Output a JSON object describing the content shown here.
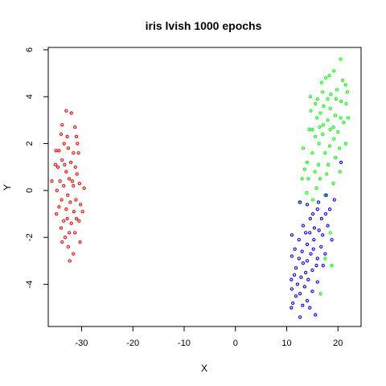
{
  "chart_data": {
    "type": "scatter",
    "title": "iris lvish 1000 epochs",
    "xlabel": "X",
    "ylabel": "Y",
    "xlim": [
      -36.5,
      24.5
    ],
    "ylim": [
      -5.8,
      6.1
    ],
    "xticks": [
      -30,
      -20,
      -10,
      0,
      10,
      20
    ],
    "yticks": [
      -4,
      -2,
      0,
      2,
      4,
      6
    ],
    "grid": false,
    "legend": "none",
    "marker": "open-circle",
    "series": [
      {
        "color": "#ff0000",
        "points": [
          [
            -33.0,
            3.4
          ],
          [
            -32.0,
            3.3
          ],
          [
            -33.8,
            2.8
          ],
          [
            -31.3,
            2.7
          ],
          [
            -34.0,
            2.4
          ],
          [
            -32.8,
            2.3
          ],
          [
            -31.0,
            2.3
          ],
          [
            -33.4,
            2.0
          ],
          [
            -30.8,
            2.0
          ],
          [
            -32.6,
            1.8
          ],
          [
            -35.0,
            1.7
          ],
          [
            -34.4,
            1.7
          ],
          [
            -31.6,
            1.6
          ],
          [
            -30.6,
            1.6
          ],
          [
            -33.8,
            1.3
          ],
          [
            -32.1,
            1.2
          ],
          [
            -35.1,
            1.1
          ],
          [
            -33.3,
            1.1
          ],
          [
            -34.6,
            1.0
          ],
          [
            -31.2,
            1.0
          ],
          [
            -33.0,
            0.8
          ],
          [
            -30.9,
            0.7
          ],
          [
            -32.4,
            0.5
          ],
          [
            -34.2,
            0.4
          ],
          [
            -31.8,
            0.4
          ],
          [
            -35.8,
            0.4
          ],
          [
            -33.5,
            0.2
          ],
          [
            -30.4,
            0.3
          ],
          [
            -31.6,
            0.2
          ],
          [
            -29.5,
            0.1
          ],
          [
            -34.8,
            0.0
          ],
          [
            -32.7,
            -0.2
          ],
          [
            -33.9,
            -0.4
          ],
          [
            -31.1,
            -0.4
          ],
          [
            -32.2,
            -0.5
          ],
          [
            -30.2,
            -0.6
          ],
          [
            -34.4,
            -0.7
          ],
          [
            -33.0,
            -0.8
          ],
          [
            -31.5,
            -0.9
          ],
          [
            -29.8,
            -0.9
          ],
          [
            -34.9,
            -1.0
          ],
          [
            -32.8,
            -1.2
          ],
          [
            -31.0,
            -1.2
          ],
          [
            -33.5,
            -1.3
          ],
          [
            -32.0,
            -1.4
          ],
          [
            -30.5,
            -1.3
          ],
          [
            -34.0,
            -1.6
          ],
          [
            -32.4,
            -1.8
          ],
          [
            -31.3,
            -1.8
          ],
          [
            -33.2,
            -2.0
          ],
          [
            -33.8,
            -2.2
          ],
          [
            -30.3,
            -2.2
          ],
          [
            -32.6,
            -2.4
          ],
          [
            -31.6,
            -2.7
          ],
          [
            -32.3,
            -3.0
          ]
        ]
      },
      {
        "color": "#00ff00",
        "points": [
          [
            20.5,
            5.6
          ],
          [
            19.2,
            5.1
          ],
          [
            18.3,
            4.9
          ],
          [
            17.6,
            4.8
          ],
          [
            20.9,
            4.7
          ],
          [
            16.8,
            4.6
          ],
          [
            21.5,
            4.5
          ],
          [
            19.8,
            4.3
          ],
          [
            17.0,
            4.2
          ],
          [
            18.6,
            4.1
          ],
          [
            21.8,
            4.2
          ],
          [
            14.6,
            4.0
          ],
          [
            16.0,
            3.9
          ],
          [
            18.0,
            3.9
          ],
          [
            19.6,
            3.9
          ],
          [
            20.6,
            3.8
          ],
          [
            15.6,
            3.7
          ],
          [
            17.2,
            3.6
          ],
          [
            21.6,
            3.7
          ],
          [
            18.5,
            3.5
          ],
          [
            14.7,
            3.4
          ],
          [
            16.6,
            3.3
          ],
          [
            19.5,
            3.2
          ],
          [
            20.5,
            3.1
          ],
          [
            15.9,
            3.1
          ],
          [
            18.0,
            3.0
          ],
          [
            22.0,
            3.1
          ],
          [
            21.1,
            2.9
          ],
          [
            17.1,
            2.8
          ],
          [
            19.1,
            2.7
          ],
          [
            16.4,
            2.7
          ],
          [
            18.5,
            2.6
          ],
          [
            14.4,
            2.6
          ],
          [
            15.0,
            2.6
          ],
          [
            20.0,
            2.5
          ],
          [
            17.0,
            2.4
          ],
          [
            15.6,
            2.3
          ],
          [
            19.2,
            2.2
          ],
          [
            21.5,
            2.0
          ],
          [
            16.3,
            2.0
          ],
          [
            18.4,
            1.9
          ],
          [
            13.2,
            1.8
          ],
          [
            20.3,
            1.8
          ],
          [
            15.0,
            1.6
          ],
          [
            17.5,
            1.6
          ],
          [
            19.5,
            1.4
          ],
          [
            14.0,
            1.2
          ],
          [
            16.2,
            1.1
          ],
          [
            18.1,
            1.1
          ],
          [
            13.5,
            0.9
          ],
          [
            15.5,
            0.8
          ],
          [
            20.4,
            0.8
          ],
          [
            17.8,
            0.7
          ],
          [
            14.2,
            0.5
          ],
          [
            16.5,
            0.5
          ],
          [
            13.0,
            0.5
          ],
          [
            19.1,
            0.3
          ],
          [
            15.8,
            0.1
          ],
          [
            13.9,
            -0.1
          ],
          [
            17.5,
            -0.2
          ],
          [
            15.1,
            -0.4
          ],
          [
            12.5,
            -0.5
          ],
          [
            18.5,
            -1.8
          ],
          [
            17.5,
            -2.9
          ],
          [
            18.8,
            -3.2
          ],
          [
            16.6,
            -4.4
          ]
        ]
      },
      {
        "color": "#0000ff",
        "points": [
          [
            20.6,
            1.2
          ],
          [
            17.7,
            -0.2
          ],
          [
            19.3,
            -0.4
          ],
          [
            16.2,
            -0.5
          ],
          [
            12.6,
            -0.5
          ],
          [
            14.0,
            -0.6
          ],
          [
            16.0,
            -0.8
          ],
          [
            18.4,
            -0.8
          ],
          [
            15.1,
            -1.0
          ],
          [
            17.6,
            -1.0
          ],
          [
            14.6,
            -1.2
          ],
          [
            16.8,
            -1.2
          ],
          [
            13.2,
            -1.5
          ],
          [
            18.0,
            -1.5
          ],
          [
            15.4,
            -1.6
          ],
          [
            16.3,
            -1.7
          ],
          [
            13.7,
            -1.8
          ],
          [
            14.5,
            -1.8
          ],
          [
            11.0,
            -1.9
          ],
          [
            17.0,
            -1.9
          ],
          [
            15.3,
            -2.1
          ],
          [
            12.4,
            -2.1
          ],
          [
            18.8,
            -2.1
          ],
          [
            14.0,
            -2.3
          ],
          [
            16.7,
            -2.4
          ],
          [
            11.6,
            -2.5
          ],
          [
            15.2,
            -2.5
          ],
          [
            13.0,
            -2.6
          ],
          [
            14.7,
            -2.7
          ],
          [
            17.5,
            -2.7
          ],
          [
            11.0,
            -2.8
          ],
          [
            12.4,
            -2.9
          ],
          [
            16.0,
            -2.9
          ],
          [
            14.0,
            -3.0
          ],
          [
            13.2,
            -3.1
          ],
          [
            15.8,
            -3.2
          ],
          [
            17.1,
            -3.2
          ],
          [
            11.8,
            -3.3
          ],
          [
            15.0,
            -3.4
          ],
          [
            13.7,
            -3.5
          ],
          [
            11.5,
            -3.6
          ],
          [
            12.8,
            -3.7
          ],
          [
            10.9,
            -3.8
          ],
          [
            14.2,
            -3.8
          ],
          [
            16.0,
            -3.9
          ],
          [
            12.1,
            -4.0
          ],
          [
            13.5,
            -4.1
          ],
          [
            11.0,
            -4.2
          ],
          [
            15.0,
            -4.3
          ],
          [
            12.6,
            -4.4
          ],
          [
            11.8,
            -4.5
          ],
          [
            14.0,
            -4.7
          ],
          [
            11.2,
            -4.8
          ],
          [
            13.1,
            -4.9
          ],
          [
            10.9,
            -5.0
          ],
          [
            14.5,
            -5.0
          ],
          [
            15.6,
            -5.3
          ],
          [
            12.6,
            -5.4
          ]
        ]
      }
    ]
  }
}
